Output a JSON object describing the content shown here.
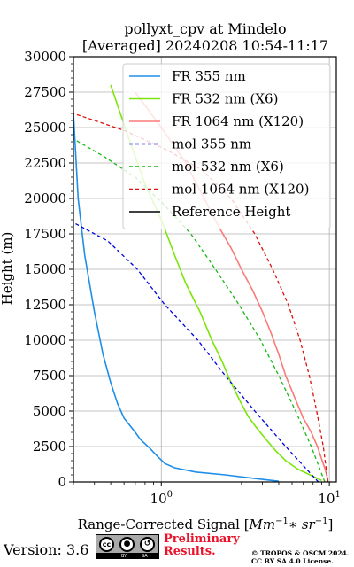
{
  "chart_data": {
    "type": "line",
    "title": "pollyxt_cpv at Mindelo",
    "subtitle": "[Averaged] 20240208 10:54-11:17",
    "xlabel": "Range-Corrected Signal [Mm^-1 * sr^-1]",
    "xlabel_parts": {
      "text": "Range-Corrected Signal [",
      "math": "Mm",
      "exp1": "−1",
      "mid": "∗ sr",
      "exp2": "−1",
      "close": "]"
    },
    "ylabel": "Height (m)",
    "xscale": "log",
    "xlim": [
      0.3,
      11
    ],
    "ylim": [
      0,
      30000
    ],
    "x_tick_labels": [
      {
        "value": 1,
        "base": "10",
        "exp": "0"
      },
      {
        "value": 10,
        "base": "10",
        "exp": "1"
      }
    ],
    "y_ticks": [
      0,
      2500,
      5000,
      7500,
      10000,
      12500,
      15000,
      17500,
      20000,
      22500,
      25000,
      27500,
      30000
    ],
    "grid": true,
    "legend_position": "top-right",
    "series": [
      {
        "name": "FR 355 nm",
        "color": "#1f8ee8",
        "style": "solid",
        "points": [
          [
            5.0,
            50
          ],
          [
            4.2,
            150
          ],
          [
            3.3,
            300
          ],
          [
            2.4,
            500
          ],
          [
            1.6,
            700
          ],
          [
            1.2,
            1000
          ],
          [
            1.05,
            1300
          ],
          [
            0.95,
            1800
          ],
          [
            0.85,
            2400
          ],
          [
            0.75,
            3000
          ],
          [
            0.7,
            3500
          ],
          [
            0.6,
            4500
          ],
          [
            0.55,
            5500
          ],
          [
            0.5,
            7000
          ],
          [
            0.45,
            9000
          ],
          [
            0.4,
            12000
          ],
          [
            0.35,
            16000
          ],
          [
            0.32,
            20000
          ],
          [
            0.3,
            26000
          ]
        ]
      },
      {
        "name": "FR 532 nm (X6)",
        "color": "#7ce50a",
        "style": "solid",
        "points": [
          [
            9.0,
            100
          ],
          [
            8.0,
            400
          ],
          [
            6.5,
            900
          ],
          [
            5.5,
            1500
          ],
          [
            4.8,
            2200
          ],
          [
            4.2,
            3000
          ],
          [
            3.7,
            3800
          ],
          [
            3.3,
            4600
          ],
          [
            3.0,
            5500
          ],
          [
            2.6,
            7000
          ],
          [
            2.3,
            8500
          ],
          [
            2.0,
            10000
          ],
          [
            1.7,
            12000
          ],
          [
            1.4,
            14000
          ],
          [
            1.2,
            16000
          ],
          [
            1.0,
            18500
          ],
          [
            0.8,
            21000
          ],
          [
            0.65,
            24000
          ],
          [
            0.5,
            28000
          ]
        ]
      },
      {
        "name": "FR 1064 nm (X120)",
        "color": "#fa7a78",
        "style": "solid",
        "points": [
          [
            9.8,
            100
          ],
          [
            9.5,
            800
          ],
          [
            9.0,
            1600
          ],
          [
            8.5,
            2500
          ],
          [
            7.8,
            3500
          ],
          [
            7.0,
            4500
          ],
          [
            6.3,
            5800
          ],
          [
            5.5,
            7500
          ],
          [
            5.0,
            9000
          ],
          [
            4.5,
            10500
          ],
          [
            4.0,
            12000
          ],
          [
            3.5,
            13500
          ],
          [
            3.0,
            15000
          ],
          [
            2.6,
            16500
          ],
          [
            2.2,
            18000
          ],
          [
            1.8,
            20000
          ],
          [
            1.4,
            22500
          ],
          [
            1.0,
            25000
          ],
          [
            0.7,
            27500
          ]
        ]
      },
      {
        "name": "mol 355 nm",
        "color": "#0000dd",
        "style": "dashed",
        "points": [
          [
            8.6,
            0
          ],
          [
            5.5,
            2500
          ],
          [
            3.6,
            5000
          ],
          [
            2.4,
            7500
          ],
          [
            1.65,
            10000
          ],
          [
            1.05,
            12500
          ],
          [
            0.72,
            15000
          ],
          [
            0.48,
            17000
          ],
          [
            0.3,
            18300
          ]
        ]
      },
      {
        "name": "mol 532 nm (X6)",
        "color": "#18b818",
        "style": "dashed",
        "points": [
          [
            9.4,
            0
          ],
          [
            7.8,
            2500
          ],
          [
            6.3,
            5000
          ],
          [
            5.0,
            7500
          ],
          [
            3.9,
            10000
          ],
          [
            2.9,
            12500
          ],
          [
            2.1,
            15000
          ],
          [
            1.5,
            17500
          ],
          [
            1.05,
            19500
          ],
          [
            0.7,
            21500
          ],
          [
            0.45,
            23000
          ],
          [
            0.3,
            24200
          ]
        ]
      },
      {
        "name": "mol 1064 nm (X120)",
        "color": "#dd1111",
        "style": "dashed",
        "points": [
          [
            9.8,
            0
          ],
          [
            9.2,
            2500
          ],
          [
            8.4,
            5000
          ],
          [
            7.6,
            7500
          ],
          [
            6.7,
            10000
          ],
          [
            5.7,
            12500
          ],
          [
            4.6,
            15000
          ],
          [
            3.6,
            17500
          ],
          [
            2.6,
            20000
          ],
          [
            1.75,
            22000
          ],
          [
            1.05,
            23500
          ],
          [
            0.6,
            24800
          ],
          [
            0.3,
            26000
          ]
        ]
      },
      {
        "name": "Reference Height",
        "color": "#000000",
        "style": "solid",
        "points": []
      }
    ]
  },
  "footer": {
    "version": "Version: 3.6",
    "license_badge": {
      "icons": [
        "cc-icon",
        "by-icon",
        "sa-icon"
      ],
      "labels": [
        "BY",
        "SA"
      ]
    },
    "preliminary": [
      "Preliminary",
      "Results."
    ],
    "copyright": [
      "© TROPOS & OSCM 2024.",
      "CC BY SA 4.0 License."
    ]
  }
}
